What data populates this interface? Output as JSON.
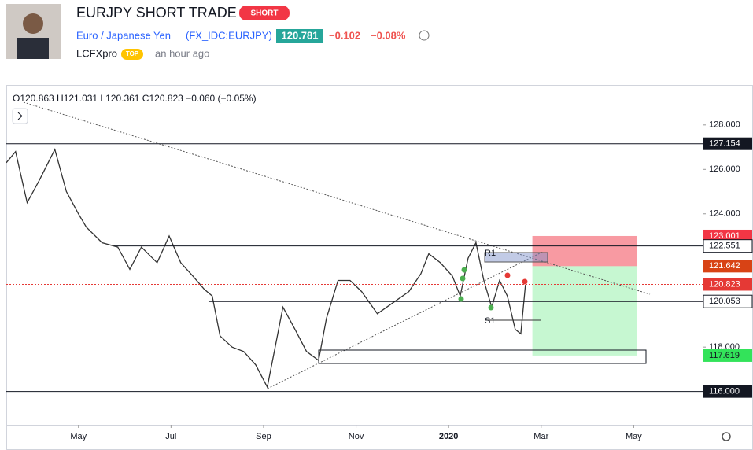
{
  "header": {
    "title": "EURJPY SHORT TRADE",
    "badge": "SHORT",
    "instrument": "Euro / Japanese Yen",
    "symbol": "(FX_IDC:EURJPY)",
    "price": "120.781",
    "change": "−0.102",
    "change_pct": "−0.08%",
    "author": "LCFXpro",
    "author_badge": "TOP",
    "time": "an hour ago"
  },
  "chart_data": {
    "type": "line",
    "ohlc": "O120.863 H121.031 L120.361 C120.823 −0.060 (−0.05%)",
    "color": "#333333",
    "x": [
      2.44,
      2.64,
      2.89,
      3.15,
      3.49,
      3.74,
      4,
      4.17,
      4.51,
      4.85,
      5.11,
      5.36,
      5.7,
      5.96,
      6.21,
      6.47,
      6.72,
      6.89,
      7.06,
      7.32,
      7.57,
      7.83,
      8.08,
      8.25,
      8.42,
      8.68,
      8.93,
      9.19,
      9.36,
      9.61,
      9.87,
      10.12,
      10.46,
      10.8,
      11.14,
      11.4,
      11.57,
      11.82,
      12.08,
      12.25,
      12.42,
      12.59,
      12.76,
      12.93,
      13.1,
      13.27,
      13.44,
      13.56,
      13.66
    ],
    "values": [
      126.3,
      126.8,
      124.5,
      125.5,
      126.9,
      125,
      124,
      123.4,
      122.7,
      122.5,
      121.5,
      122.5,
      121.8,
      123,
      121.8,
      121.2,
      120.6,
      120.3,
      118.5,
      118,
      117.8,
      117.2,
      116.2,
      118,
      119.8,
      118.8,
      117.8,
      117.4,
      119.3,
      121,
      121,
      120.5,
      119.5,
      120,
      120.5,
      121.3,
      122.2,
      121.8,
      121.2,
      120.3,
      122,
      122.7,
      121,
      119.8,
      121,
      120.3,
      118.8,
      118.6,
      120.8
    ],
    "xlim": [
      2.44,
      17.49
    ],
    "ylim": [
      114.5,
      129.8
    ],
    "xticks": [
      {
        "value": 4,
        "label": "May"
      },
      {
        "value": 6,
        "label": "Jul"
      },
      {
        "value": 8,
        "label": "Sep"
      },
      {
        "value": 10,
        "label": "Nov"
      },
      {
        "value": 12,
        "label": "2020"
      },
      {
        "value": 14,
        "label": "Mar"
      },
      {
        "value": 16,
        "label": "May"
      }
    ],
    "yticks": [
      {
        "value": 128,
        "label": "128.000"
      },
      {
        "value": 126,
        "label": "126.000"
      },
      {
        "value": 124,
        "label": "124.000"
      },
      {
        "value": 118,
        "label": "118.000"
      }
    ],
    "levels": [
      {
        "price": 127.154,
        "color": "#131722"
      },
      {
        "price": 123.001,
        "color": "#f23645"
      },
      {
        "price": 122.551,
        "start": 4.77,
        "color": "#ffffff"
      },
      {
        "price": 121.642,
        "color": "#d84315"
      },
      {
        "price": 120.823,
        "color": "#e53935"
      },
      {
        "price": 120.053,
        "start": 6.81,
        "color": "#ffffff"
      },
      {
        "price": 117.619,
        "color": "#33e35a"
      },
      {
        "price": 116,
        "label": "116.000",
        "color": "#131722"
      }
    ],
    "position": {
      "stop": 123.001,
      "entry": 121.642,
      "target": 117.619,
      "start": 13.81,
      "end": 16.07
    },
    "annotations": [
      "R1",
      "S1"
    ]
  }
}
